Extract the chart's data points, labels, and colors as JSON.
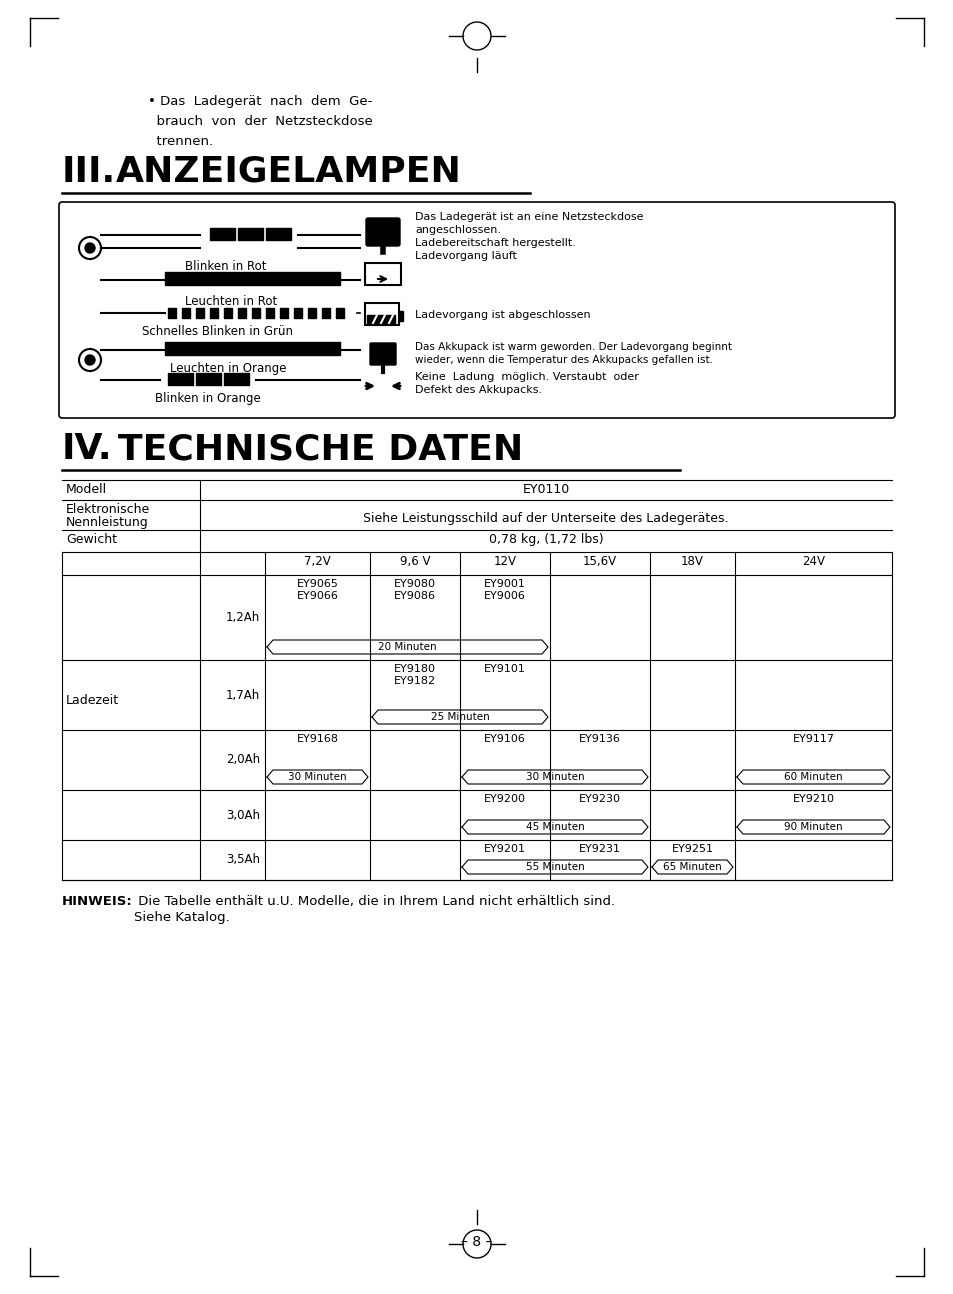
{
  "bg_color": "#ffffff",
  "page_title": "– 8 –",
  "bullet_text": "• Das  Ladegerät  nach  dem  Ge-\n  brauch  von  der  Netzsteckdose\n  trennen.",
  "section3_title": "III.ANZEIGELAMPEN",
  "section4_title": "IV.TECHNISCHE DATEN",
  "lamp_indicators": [
    {
      "label": "Blinken in Rot",
      "desc": "Das Ladegerät ist an eine Netzsteckdose\nangeschlossen.\nLadebereitschaft hergestellt.\nLadevorgang läuft"
    },
    {
      "label": "Leuchten in Rot",
      "desc": ""
    },
    {
      "label": "Schnelles Blinken in Grün",
      "desc": "Ladevorgang ist abgeschlossen"
    },
    {
      "label": "Leuchten in Orange",
      "desc": "Das Akkupack ist warm geworden. Der Ladevorgang beginnt\nwieder, wenn die Temperatur des Akkupacks gefallen ist."
    },
    {
      "label": "Blinken in Orange",
      "desc": "Keine  Ladung  möglich. Verstaubt  oder\nDefekt des Akkupacks."
    }
  ],
  "table_headers": [
    "Modell",
    "EY0110"
  ],
  "table_rows": [
    [
      "Elektronische\nNennleistung",
      "Siehe Leistungsschild auf der Unterseite des Ladegerätes."
    ],
    [
      "Gewicht",
      "0,78 kg, (1,72 lbs)"
    ]
  ],
  "ladezeit_voltages": [
    "7,2V",
    "9,6 V",
    "12V",
    "15,6V",
    "18V",
    "24V"
  ],
  "ladezeit_rows": [
    {
      "ah": "1,2Ah",
      "cells": {
        "7.2": "EY9065\nEY9066",
        "9.6": "EY9080\nEY9086",
        "12": "EY9001\nEY9006",
        "15.6": "",
        "18": "",
        "24": ""
      },
      "badge": {
        "text": "20 Minuten",
        "col_start": "7.2",
        "col_end": "12"
      }
    },
    {
      "ah": "1,7Ah",
      "cells": {
        "7.2": "",
        "9.6": "EY9180\nEY9182",
        "12": "EY9101",
        "15.6": "",
        "18": "",
        "24": ""
      },
      "badge": {
        "text": "25 Minuten",
        "col_start": "9.6",
        "col_end": "12"
      }
    },
    {
      "ah": "2,0Ah",
      "cells": {
        "7.2": "EY9168",
        "9.6": "",
        "12": "EY9106",
        "15.6": "EY9136",
        "18": "",
        "24": "EY9117"
      },
      "badges": [
        {
          "text": "30 Minuten",
          "col_start": "7.2",
          "col_end": "7.2"
        },
        {
          "text": "30 Minuten",
          "col_start": "12",
          "col_end": "15.6"
        },
        {
          "text": "60 Minuten",
          "col_start": "24",
          "col_end": "24"
        }
      ]
    },
    {
      "ah": "3,0Ah",
      "cells": {
        "7.2": "",
        "9.6": "",
        "12": "EY9200",
        "15.6": "EY9230",
        "18": "",
        "24": "EY9210"
      },
      "badges": [
        {
          "text": "45 Minuten",
          "col_start": "12",
          "col_end": "15.6"
        },
        {
          "text": "90 Minuten",
          "col_start": "24",
          "col_end": "24"
        }
      ]
    },
    {
      "ah": "3,5Ah",
      "cells": {
        "7.2": "",
        "9.6": "",
        "12": "EY9201",
        "15.6": "EY9231",
        "18": "EY9251",
        "24": ""
      },
      "badges": [
        {
          "text": "55 Minuten",
          "col_start": "12",
          "col_end": "15.6"
        },
        {
          "text": "65 Minuten",
          "col_start": "18",
          "col_end": "18"
        }
      ]
    }
  ],
  "hinweis_bold": "HINWEIS:",
  "hinweis_text": " Die Tabelle enthält u.U. Modelle, die in Ihrem Land nicht erhältlich sind.\n          Siehe Katalog."
}
